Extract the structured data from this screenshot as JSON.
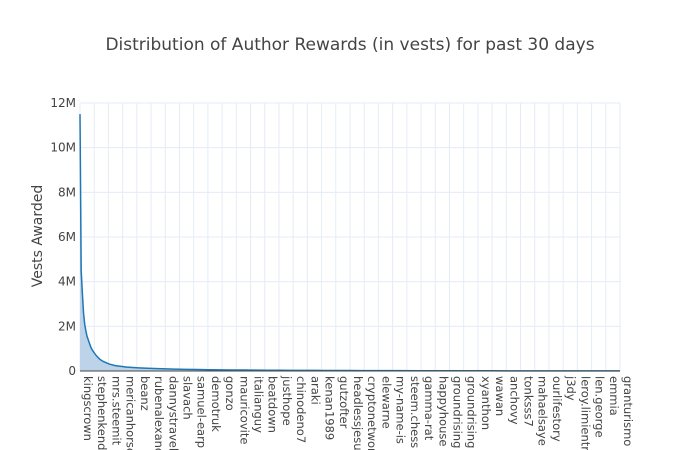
{
  "chart_data": {
    "type": "area",
    "title": "Distribution of Author Rewards (in vests) for past 30 days",
    "xlabel": "",
    "ylabel": "Vests Awarded",
    "ylim": [
      0,
      12000000
    ],
    "ytick_values": [
      0,
      2000000,
      4000000,
      6000000,
      8000000,
      10000000,
      12000000
    ],
    "ytick_labels": [
      "0",
      "2M",
      "4M",
      "6M",
      "8M",
      "10M",
      "12M"
    ],
    "grid": true,
    "legend": "none",
    "colors": {
      "line": "#1f77b4",
      "fill": "#bcd3ea",
      "grid": "#e5ecf6",
      "axis": "#444444"
    },
    "x_tick_labels": [
      "kingscrown",
      "stephenkendal",
      "mrs.steemit",
      "mericanhorse",
      "beanz",
      "rubenalexander",
      "dannystravels",
      "slavach",
      "samuel-earp",
      "demotruk",
      "gonzo",
      "mauricovite",
      "italianguy",
      "beatdown",
      "justhope",
      "chinodeno7",
      "araki",
      "kenan1989",
      "gutzofter",
      "headlessjesus",
      "cryptonetworks",
      "elewarne",
      "my-name-is",
      "steem.chess",
      "gamma-rat",
      "happyhouse",
      "groundrising",
      "groundrising",
      "xyanthon",
      "wawan",
      "anchovy",
      "tonksss7",
      "mahaelsaye",
      "ourlifestory",
      "j3dy",
      "leroy.limientras",
      "len.george",
      "emmia",
      "granturismo"
    ],
    "x": [
      0,
      1,
      2,
      3,
      4,
      5,
      6,
      7,
      8,
      9,
      10,
      12,
      14,
      17,
      20,
      25,
      30,
      40,
      50,
      60,
      70,
      80,
      90,
      100,
      110,
      120,
      130,
      140,
      150,
      160,
      170,
      180,
      190,
      200,
      210,
      220,
      230,
      240,
      250,
      270,
      290,
      320,
      350,
      380,
      400,
      420,
      450,
      460
    ],
    "values": [
      11500000,
      4500000,
      3500000,
      2600000,
      2100000,
      1800000,
      1550000,
      1400000,
      1250000,
      1100000,
      980000,
      820000,
      680000,
      520000,
      420000,
      310000,
      240000,
      175000,
      140000,
      115000,
      98000,
      85000,
      75000,
      66000,
      58000,
      52000,
      47000,
      43000,
      39000,
      36000,
      33000,
      30000,
      28000,
      26000,
      24000,
      22000,
      20000,
      18500,
      17000,
      15000,
      13000,
      11000,
      9000,
      7500,
      6500,
      5500,
      4200,
      3800
    ],
    "x_max": 460
  }
}
